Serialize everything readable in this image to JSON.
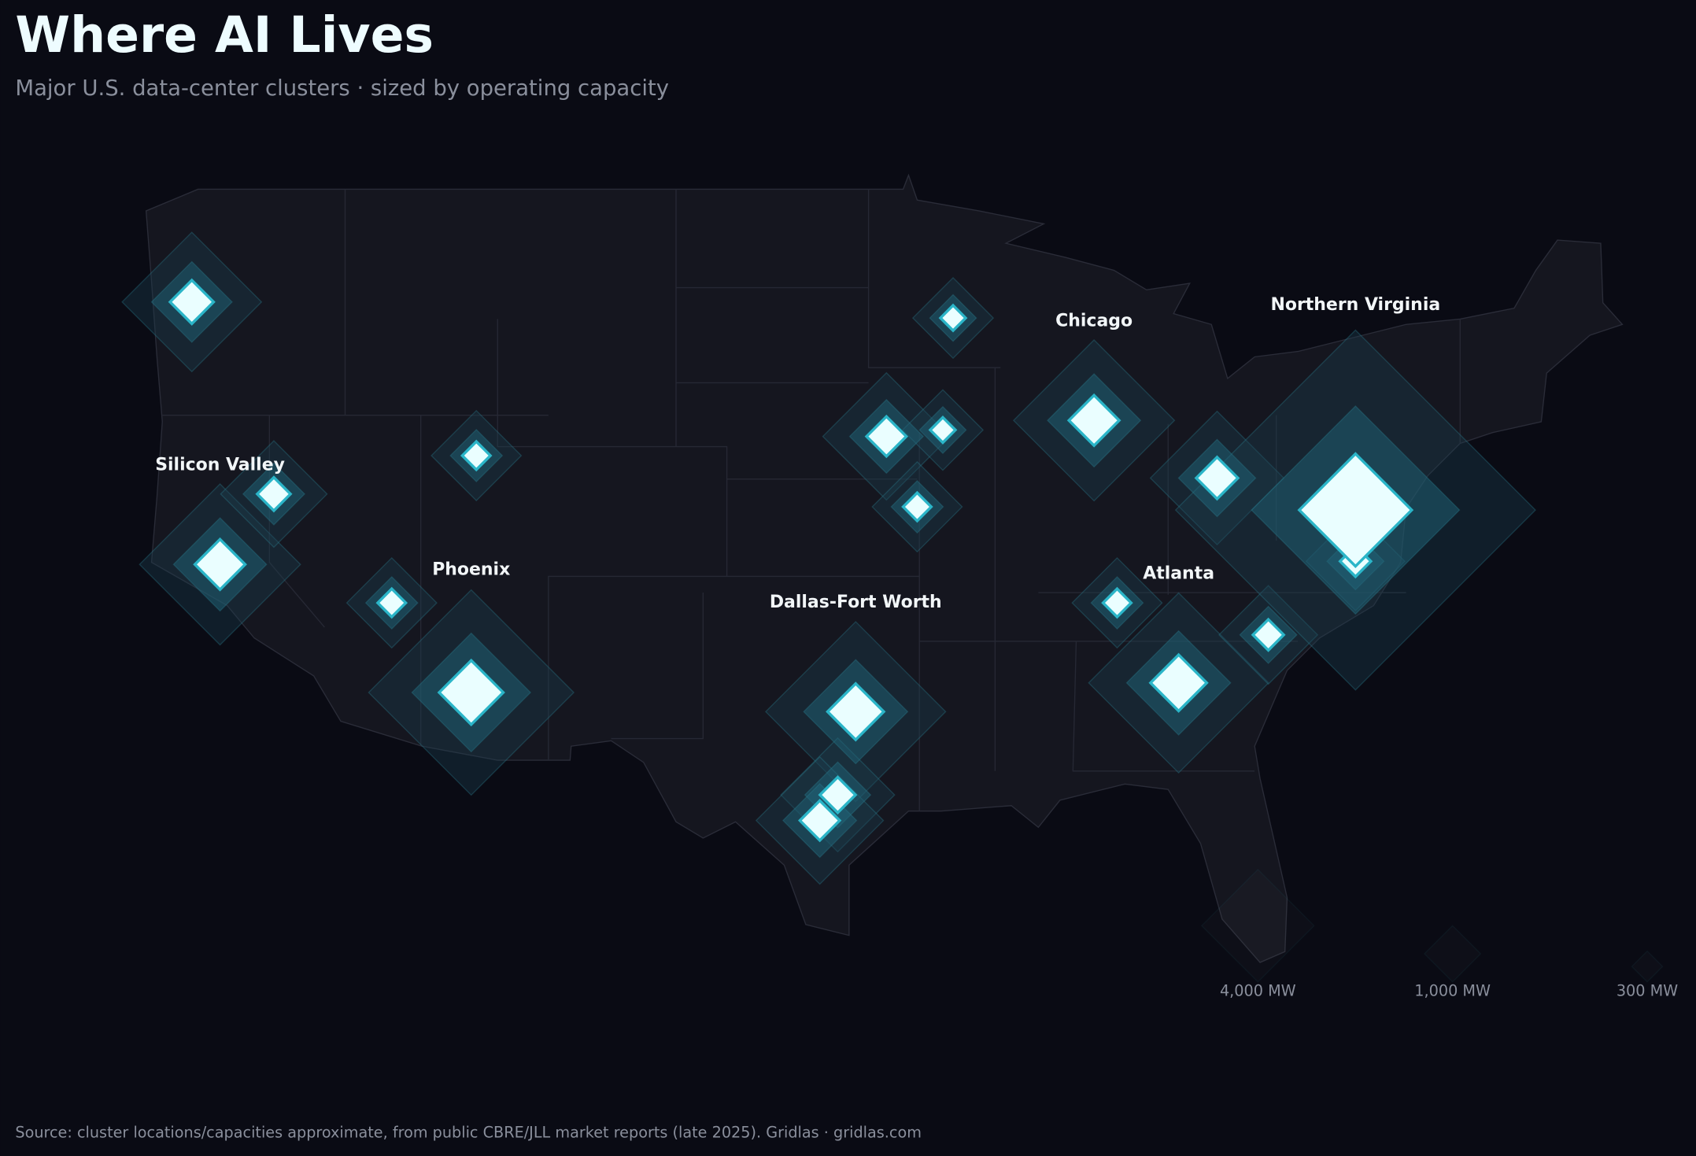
{
  "header": {
    "title": "Where AI Lives",
    "subtitle": "Major U.S. data-center clusters · sized by operating capacity"
  },
  "map": {
    "clusters": [
      {
        "name": null,
        "lon": -122.9,
        "lat": 45.6,
        "mw": 600
      },
      {
        "name": "Silicon Valley",
        "lon": -121.8,
        "lat": 37.4,
        "mw": 800
      },
      {
        "name": null,
        "lon": -119.7,
        "lat": 39.6,
        "mw": 350
      },
      {
        "name": null,
        "lon": -111.8,
        "lat": 40.8,
        "mw": 250
      },
      {
        "name": null,
        "lon": -115.1,
        "lat": 36.2,
        "mw": 250
      },
      {
        "name": "Phoenix",
        "lon": -112.0,
        "lat": 33.4,
        "mw": 1300
      },
      {
        "name": "Dallas-Fort Worth",
        "lon": -97.0,
        "lat": 32.8,
        "mw": 1000
      },
      {
        "name": null,
        "lon": -97.7,
        "lat": 30.2,
        "mw": 400
      },
      {
        "name": null,
        "lon": -98.4,
        "lat": 29.4,
        "mw": 500
      },
      {
        "name": null,
        "lon": -93.2,
        "lat": 45.1,
        "mw": 200
      },
      {
        "name": null,
        "lon": -95.8,
        "lat": 41.4,
        "mw": 500
      },
      {
        "name": null,
        "lon": -93.6,
        "lat": 41.6,
        "mw": 200
      },
      {
        "name": null,
        "lon": -94.6,
        "lat": 39.2,
        "mw": 250
      },
      {
        "name": "Chicago",
        "lon": -87.7,
        "lat": 41.9,
        "mw": 800
      },
      {
        "name": null,
        "lon": -82.9,
        "lat": 40.1,
        "mw": 550
      },
      {
        "name": null,
        "lon": -86.8,
        "lat": 36.2,
        "mw": 250
      },
      {
        "name": "Atlanta",
        "lon": -84.4,
        "lat": 33.7,
        "mw": 1000
      },
      {
        "name": null,
        "lon": -80.9,
        "lat": 35.2,
        "mw": 300
      },
      {
        "name": null,
        "lon": -77.5,
        "lat": 37.5,
        "mw": 300
      },
      {
        "name": "Northern Virginia",
        "lon": -77.5,
        "lat": 39.1,
        "mw": 4000
      }
    ]
  },
  "legend": [
    {
      "value": 4000,
      "label": "4,000 MW"
    },
    {
      "value": 1000,
      "label": "1,000 MW"
    },
    {
      "value": 300,
      "label": "300 MW"
    }
  ],
  "source": "Source: cluster locations/capacities approximate, from public CBRE/JLL market reports (late 2025). Gridlas · gridlas.com"
}
